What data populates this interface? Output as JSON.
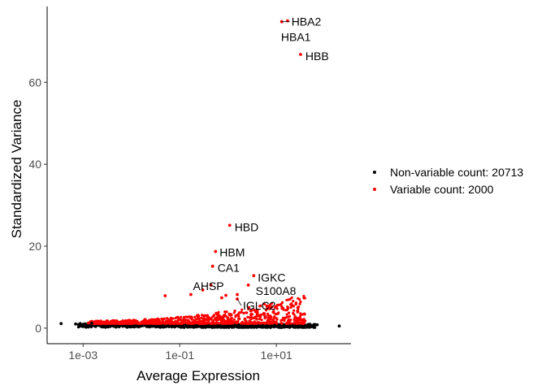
{
  "chart_data": {
    "type": "scatter",
    "title": "",
    "xlabel": "Average Expression",
    "ylabel": "Standardized Variance",
    "x_scale": "log10",
    "xlim": [
      0.00018,
      350
    ],
    "ylim": [
      -3.8,
      78.5
    ],
    "x_ticks": [
      {
        "value": 0.001,
        "label": "1e-03"
      },
      {
        "value": 0.1,
        "label": "1e-01"
      },
      {
        "value": 10,
        "label": "1e+01"
      }
    ],
    "y_ticks": [
      {
        "value": 0,
        "label": "0"
      },
      {
        "value": 20,
        "label": "20"
      },
      {
        "value": 40,
        "label": "40"
      },
      {
        "value": 60,
        "label": "60"
      }
    ],
    "grid": false,
    "legend_position": "right",
    "series": [
      {
        "name": "Non-variable count: 20713",
        "color": "#000000",
        "x_range": [
          0.00035,
          200
        ],
        "y_range": [
          0,
          1.4
        ],
        "points": [
          {
            "x": 0.00035,
            "y": 1.1
          },
          {
            "x": 0.0007,
            "y": 1.0
          },
          {
            "x": 0.001,
            "y": 0.9
          },
          {
            "x": 0.0015,
            "y": 1.2
          },
          {
            "x": 50,
            "y": 0.9
          },
          {
            "x": 70,
            "y": 0.8
          },
          {
            "x": 200,
            "y": 0.5
          }
        ]
      },
      {
        "name": "Variable count: 2000",
        "color": "#ff0000",
        "x_range": [
          0.0012,
          50
        ],
        "y_range": [
          1.2,
          75
        ],
        "points": [
          {
            "x": 12.9,
            "y": 74.8,
            "label": "HBA2"
          },
          {
            "x": 17.0,
            "y": 75.0,
            "label": "HBA1"
          },
          {
            "x": 31.6,
            "y": 66.8,
            "label": "HBB"
          },
          {
            "x": 1.08,
            "y": 25.1,
            "label": "HBD"
          },
          {
            "x": 0.55,
            "y": 18.7,
            "label": "HBM"
          },
          {
            "x": 0.48,
            "y": 15.1,
            "label": "CA1"
          },
          {
            "x": 0.44,
            "y": 10.5,
            "label": "AHSP"
          },
          {
            "x": 3.4,
            "y": 12.8,
            "label": "IGKC"
          },
          {
            "x": 2.62,
            "y": 10.5,
            "label": "S100A8"
          },
          {
            "x": 1.55,
            "y": 7.1,
            "label": "IGLC2"
          },
          {
            "x": 0.3,
            "y": 9.3
          },
          {
            "x": 0.17,
            "y": 8.2
          },
          {
            "x": 0.05,
            "y": 7.9
          },
          {
            "x": 0.74,
            "y": 7.4
          },
          {
            "x": 1.55,
            "y": 8.2
          },
          {
            "x": 0.9,
            "y": 8.0
          }
        ]
      }
    ],
    "annotations": [
      {
        "text": "HBA2",
        "point_index": 0
      },
      {
        "text": "HBA1",
        "point_index": 1
      },
      {
        "text": "HBB",
        "point_index": 2
      },
      {
        "text": "HBD",
        "point_index": 3
      },
      {
        "text": "HBM",
        "point_index": 4
      },
      {
        "text": "CA1",
        "point_index": 5
      },
      {
        "text": "AHSP",
        "point_index": 6
      },
      {
        "text": "IGKC",
        "point_index": 7
      },
      {
        "text": "S100A8",
        "point_index": 8
      },
      {
        "text": "IGLC2",
        "point_index": 9
      }
    ]
  }
}
